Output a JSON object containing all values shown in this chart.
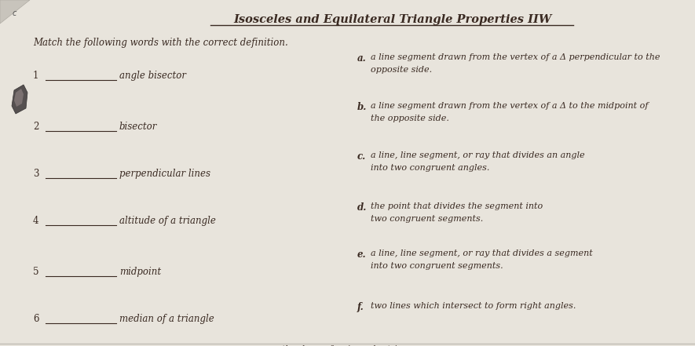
{
  "title": "Isosceles and Equilateral Triangle Properties IIW",
  "subtitle": "Match the following words with the correct definition.",
  "bg_color": "#e8e4dc",
  "text_color": "#3a2a22",
  "left_items": [
    {
      "num": "1",
      "term": "angle bisector"
    },
    {
      "num": "2",
      "term": "bisector"
    },
    {
      "num": "3",
      "term": "perpendicular lines"
    },
    {
      "num": "4",
      "term": "altitude of a triangle"
    },
    {
      "num": "5",
      "term": "midpoint"
    },
    {
      "num": "6",
      "term": "median of a triangle"
    }
  ],
  "right_items": [
    {
      "letter": "a.",
      "line1": "a line segment drawn from the vertex of a Δ perpendicular to the",
      "line2": "opposite side."
    },
    {
      "letter": "b.",
      "line1": "a line segment drawn from the vertex of a Δ to the midpoint of",
      "line2": "the opposite side."
    },
    {
      "letter": "c.",
      "line1": "a line, line segment, or ray that divides an angle",
      "line2": "into two congruent angles."
    },
    {
      "letter": "d.",
      "line1": "the point that divides the segment into",
      "line2": "two congruent segments."
    },
    {
      "letter": "e.",
      "line1": "a line, line segment, or ray that divides a segment",
      "line2": "into two congruent segments."
    },
    {
      "letter": "f.",
      "line1": "two lines which intersect to form right angles.",
      "line2": ""
    }
  ],
  "title_fontsize": 10.5,
  "body_fontsize": 8.5,
  "small_fontsize": 8.0
}
